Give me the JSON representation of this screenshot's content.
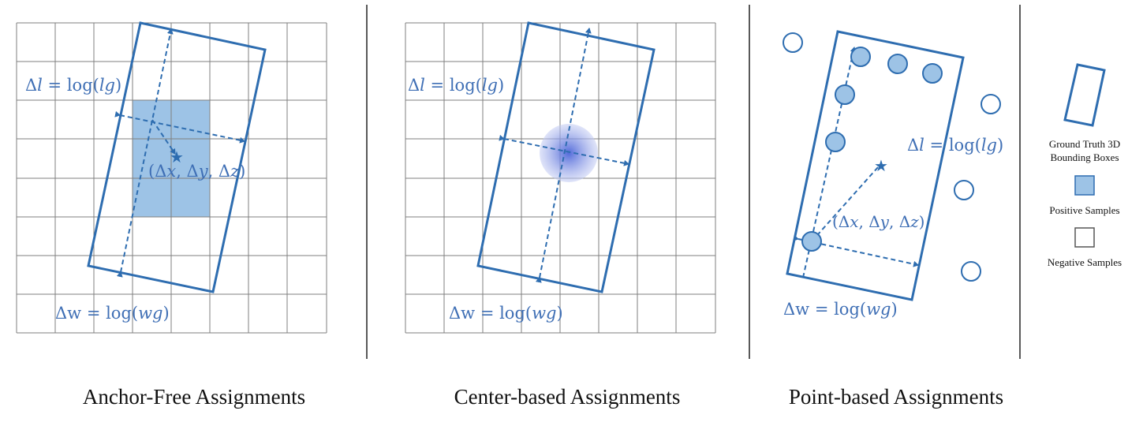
{
  "colors": {
    "box": "#2e6db0",
    "positive_fill": "#9dc3e6",
    "point_fill": "#9dc3e6",
    "text_blue": "#3f6fb5",
    "grid": "#7f7f7f",
    "divider": "#222222"
  },
  "panels": [
    {
      "title": "Anchor-Free Assignments",
      "labels": {
        "dl": "Δ𝑙 = log(𝑙𝑔)",
        "dw": "Δw = log(𝑤𝑔)",
        "center": "(Δ𝑥, Δ𝑦, Δ𝑧)"
      }
    },
    {
      "title": "Center-based Assignments",
      "labels": {
        "dl": "Δ𝑙 = log(𝑙𝑔)",
        "dw": "Δw = log(𝑤𝑔)"
      }
    },
    {
      "title": "Point-based Assignments",
      "labels": {
        "dl": "Δ𝑙 = log(𝑙𝑔)",
        "dw": "Δw = log(𝑤𝑔)",
        "center": "(Δ𝑥, Δ𝑦, Δ𝑧)"
      }
    }
  ],
  "legend": {
    "items": [
      {
        "label": "Ground Truth 3D Bounding Boxes",
        "lines": [
          "Ground Truth 3D",
          "Bounding Boxes"
        ],
        "icon": "rotated-box-icon"
      },
      {
        "label": "Positive Samples",
        "lines": [
          "Positive Samples"
        ],
        "icon": "filled-square-icon"
      },
      {
        "label": "Negative Samples",
        "lines": [
          "Negative Samples"
        ],
        "icon": "empty-square-icon"
      }
    ]
  }
}
